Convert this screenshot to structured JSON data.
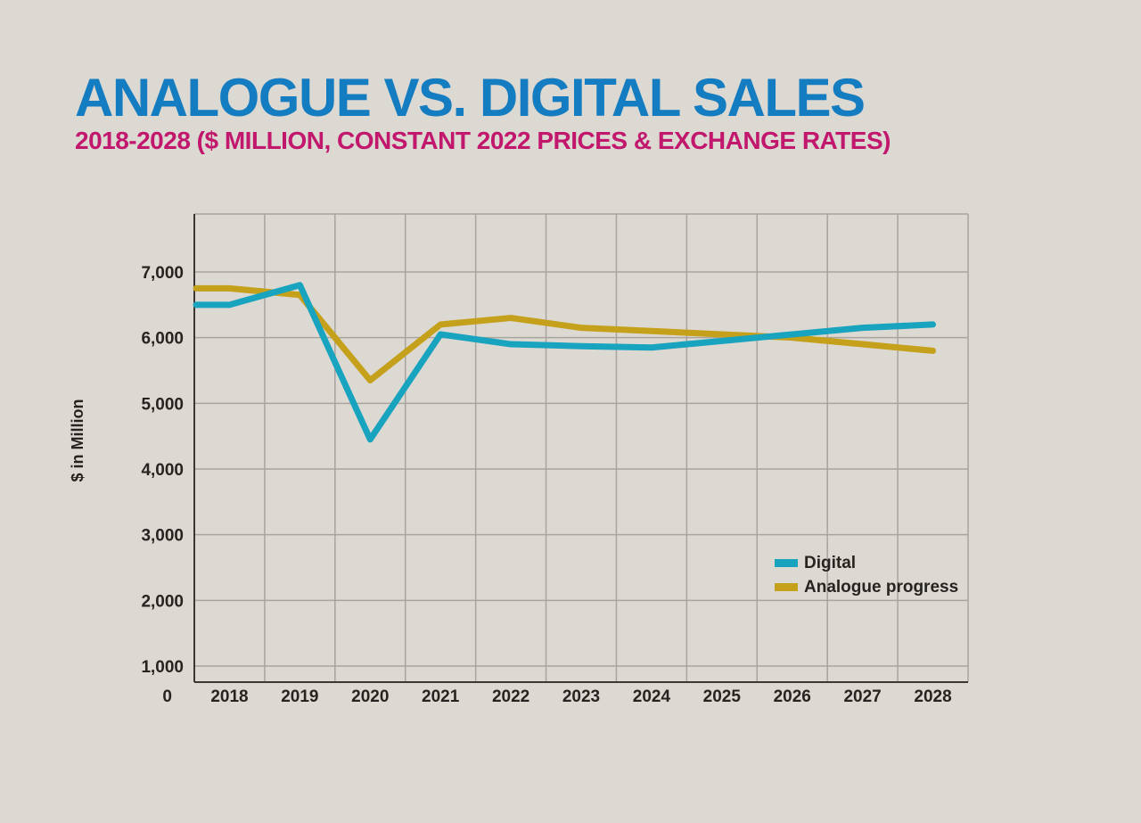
{
  "header": {
    "title": "ANALOGUE VS. DIGITAL SALES",
    "subtitle": "2018-2028 ($ MILLION, CONSTANT 2022 PRICES & EXCHANGE RATES)"
  },
  "theme": {
    "background": "#dcd8d2",
    "title_color": "#147cc0",
    "subtitle_color": "#c1176d",
    "grid_color": "#a9a49d",
    "axis_color": "#3a3733",
    "text_color": "#262320"
  },
  "chart_data": {
    "type": "line",
    "title": "ANALOGUE VS. DIGITAL SALES",
    "subtitle": "2018-2028 ($ MILLION, CONSTANT 2022 PRICES & EXCHANGE RATES)",
    "xlabel": "",
    "ylabel": "$ in Million",
    "origin_label": "0",
    "grid": true,
    "legend_position": "middle-right",
    "ylim": [
      1000,
      7000
    ],
    "x_categories": [
      "2018",
      "2019",
      "2020",
      "2021",
      "2022",
      "2023",
      "2024",
      "2025",
      "2026",
      "2027",
      "2028"
    ],
    "y_ticks": [
      {
        "value": 1000,
        "label": "1,000"
      },
      {
        "value": 2000,
        "label": "2,000"
      },
      {
        "value": 3000,
        "label": "3,000"
      },
      {
        "value": 4000,
        "label": "4,000"
      },
      {
        "value": 5000,
        "label": "5,000"
      },
      {
        "value": 6000,
        "label": "6,000"
      },
      {
        "value": 7000,
        "label": "7,000"
      }
    ],
    "series": [
      {
        "name": "Digital",
        "color": "#18a3bf",
        "values": [
          6500,
          6800,
          4450,
          6050,
          5900,
          5870,
          5850,
          5950,
          6050,
          6150,
          6200
        ]
      },
      {
        "name": "Analogue progress",
        "color": "#c5a01b",
        "values": [
          6750,
          6650,
          5350,
          6200,
          6300,
          6150,
          6100,
          6050,
          6000,
          5900,
          5800
        ]
      }
    ]
  }
}
